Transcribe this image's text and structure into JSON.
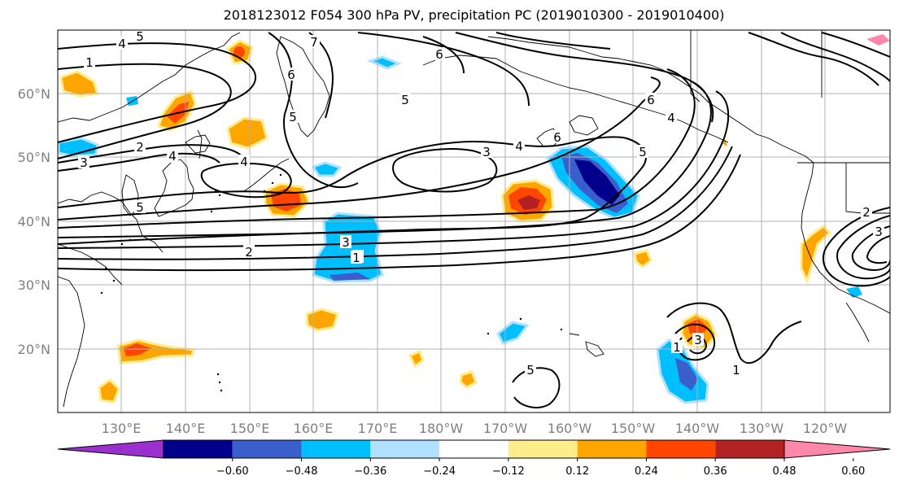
{
  "title": "2018123012 F054 300 hPa PV, precipitation PC (2019010300 - 2019010400)",
  "map": {
    "lat_labels": [
      "60°N",
      "50°N",
      "40°N",
      "30°N",
      "20°N"
    ],
    "lon_labels": [
      "130°E",
      "140°E",
      "150°E",
      "160°E",
      "170°E",
      "180°W",
      "170°W",
      "160°W",
      "150°W",
      "140°W",
      "130°W",
      "120°W"
    ],
    "pv_contour_labels": [
      "5",
      "4",
      "1",
      "4",
      "6",
      "7",
      "5",
      "5",
      "6",
      "6",
      "5",
      "4",
      "2",
      "3",
      "4",
      "5",
      "4",
      "4",
      "3",
      "6",
      "3",
      "4",
      "5",
      "2",
      "1",
      "3",
      "1",
      "1",
      "2",
      "3"
    ],
    "colors": {
      "land_outline": "#000000",
      "pv_contour": "#000000",
      "grid": "#b0b0b0"
    }
  },
  "colorbar": {
    "ticks": [
      "−0.60",
      "−0.48",
      "−0.36",
      "−0.24",
      "−0.12",
      "0.12",
      "0.24",
      "0.36",
      "0.48",
      "0.60"
    ],
    "colors": [
      "#9b30d0",
      "#00008b",
      "#3a5fcd",
      "#00bfff",
      "#b0e2ff",
      "#ffffff",
      "#ffec8b",
      "#ffa500",
      "#ff4500",
      "#b22222",
      "#ff88aa"
    ]
  }
}
